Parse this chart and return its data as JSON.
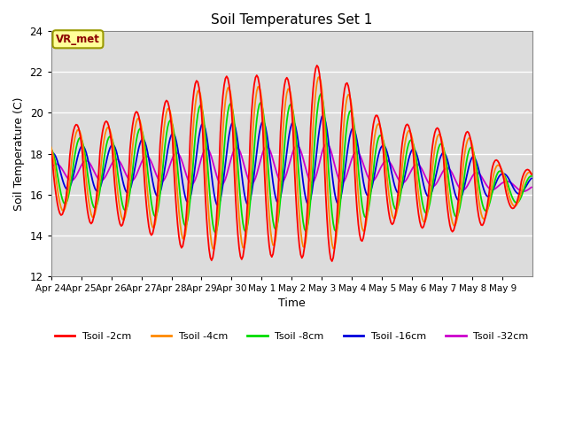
{
  "title": "Soil Temperatures Set 1",
  "xlabel": "Time",
  "ylabel": "Soil Temperature (C)",
  "ylim": [
    12,
    24
  ],
  "yticks": [
    12,
    14,
    16,
    18,
    20,
    22,
    24
  ],
  "annotation_text": "VR_met",
  "bg_color": "#dcdcdc",
  "line_colors": {
    "2cm": "#ff0000",
    "4cm": "#ff8800",
    "8cm": "#00dd00",
    "16cm": "#0000dd",
    "32cm": "#cc00cc"
  },
  "line_labels": [
    "Tsoil -2cm",
    "Tsoil -4cm",
    "Tsoil -8cm",
    "Tsoil -16cm",
    "Tsoil -32cm"
  ],
  "xtick_labels": [
    "Apr 24",
    "Apr 25",
    "Apr 26",
    "Apr 27",
    "Apr 28",
    "Apr 29",
    "Apr 30",
    "May 1",
    "May 2",
    "May 3",
    "May 4",
    "May 5",
    "May 6",
    "May 7",
    "May 8",
    "May 9"
  ],
  "n_days": 16,
  "pts_per_day": 24
}
